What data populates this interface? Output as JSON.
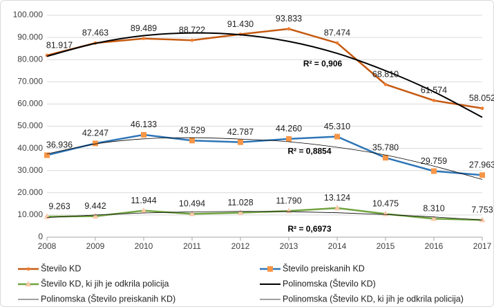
{
  "chart_data": {
    "type": "line",
    "categories": [
      "2008",
      "2009",
      "2010",
      "2011",
      "2012",
      "2013",
      "2014",
      "2015",
      "2016",
      "2017"
    ],
    "ylim": [
      0,
      100000
    ],
    "yticks": [
      0,
      {
        "value": 10000,
        "label": "10.000"
      },
      {
        "value": 20000,
        "label": "20.000"
      },
      {
        "value": 30000,
        "label": "30.000"
      },
      {
        "value": 40000,
        "label": "40.000"
      },
      {
        "value": 50000,
        "label": "50.000"
      },
      {
        "value": 60000,
        "label": "60.000"
      },
      {
        "value": 70000,
        "label": "70.000"
      },
      {
        "value": 80000,
        "label": "80.000"
      },
      {
        "value": 90000,
        "label": "90.000"
      },
      {
        "value": 100000,
        "label": "100.000"
      }
    ],
    "grid": true,
    "legend": "bottom",
    "series": [
      {
        "name": "Število KD",
        "color": "#c55a11",
        "marker": "circle",
        "marker_color": "#ed7d31",
        "values": [
          81917,
          87463,
          89489,
          88722,
          91430,
          93833,
          87474,
          68810,
          61574,
          58052
        ],
        "value_labels": [
          "81.917",
          "87.463",
          "89.489",
          "88.722",
          "91.430",
          "93.833",
          "87.474",
          "68.810",
          "61.574",
          "58.052"
        ]
      },
      {
        "name": "Število preiskanih KD",
        "color": "#2e75b6",
        "marker": "square",
        "marker_color": "#f79646",
        "values": [
          36936,
          42247,
          46133,
          43529,
          42787,
          44260,
          45310,
          35780,
          29759,
          27963
        ],
        "value_labels": [
          "36.936",
          "42.247",
          "46.133",
          "43.529",
          "42.787",
          "44.260",
          "45.310",
          "35.780",
          "29.759",
          "27.963"
        ]
      },
      {
        "name": "Število KD, ki jih je odkrila policija",
        "color": "#70a33f",
        "marker": "triangle",
        "marker_color": "#f8c9a8",
        "values": [
          9263,
          9442,
          11944,
          10494,
          11028,
          11790,
          13124,
          10475,
          8310,
          7753
        ],
        "value_labels": [
          "9.263",
          "9.442",
          "11.944",
          "10.494",
          "11.028",
          "11.790",
          "13.124",
          "10.475",
          "8.310",
          "7.753"
        ]
      },
      {
        "name": "Polinomska (Število KD)",
        "color": "#000000",
        "width": 2,
        "trend": true,
        "values": [
          81500,
          87300,
          90800,
          92000,
          91200,
          88200,
          82800,
          75000,
          65500,
          54000
        ]
      },
      {
        "name": "Polinomska (Število preiskanih KD)",
        "color": "#000000",
        "width": 0.8,
        "trend": true,
        "values": [
          37500,
          42000,
          44300,
          44800,
          44200,
          43000,
          40500,
          37000,
          32000,
          26000
        ]
      },
      {
        "name": "Polinomska (Število KD, ki jih je odkrila policija)",
        "color": "#000000",
        "width": 0.8,
        "trend": true,
        "values": [
          8800,
          10000,
          10900,
          11400,
          11600,
          11500,
          11000,
          10200,
          9100,
          7700
        ]
      }
    ],
    "annotations": [
      "R² = 0,906",
      "R² = 0,8854",
      "R² = 0,6973"
    ]
  }
}
